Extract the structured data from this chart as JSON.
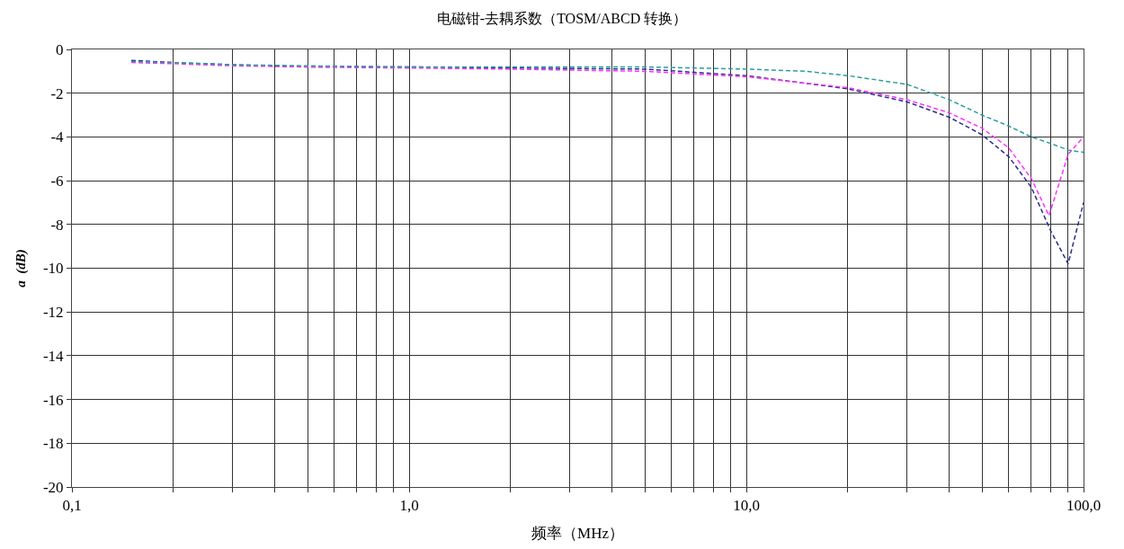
{
  "chart_data": {
    "type": "line",
    "title": "电磁钳-去耦系数（TOSM/ABCD 转换）",
    "xlabel": "频率（MHz）",
    "ylabel": "a  (dB)",
    "log": "x",
    "grid": true,
    "marker": "none",
    "line_style": "dashed",
    "xlim": [
      0.1,
      100
    ],
    "ylim": [
      -20,
      0
    ],
    "xticks": [
      {
        "value": 0.1,
        "label": "0,1"
      },
      {
        "value": 0.2,
        "label": null
      },
      {
        "value": 0.3,
        "label": null
      },
      {
        "value": 0.4,
        "label": null
      },
      {
        "value": 0.5,
        "label": null
      },
      {
        "value": 0.6,
        "label": null
      },
      {
        "value": 0.7,
        "label": null
      },
      {
        "value": 0.8,
        "label": null
      },
      {
        "value": 0.9,
        "label": null
      },
      {
        "value": 1,
        "label": "1,0"
      },
      {
        "value": 2,
        "label": null
      },
      {
        "value": 3,
        "label": null
      },
      {
        "value": 4,
        "label": null
      },
      {
        "value": 5,
        "label": null
      },
      {
        "value": 6,
        "label": null
      },
      {
        "value": 7,
        "label": null
      },
      {
        "value": 8,
        "label": null
      },
      {
        "value": 9,
        "label": null
      },
      {
        "value": 10,
        "label": "10,0"
      },
      {
        "value": 20,
        "label": null
      },
      {
        "value": 30,
        "label": null
      },
      {
        "value": 40,
        "label": null
      },
      {
        "value": 50,
        "label": null
      },
      {
        "value": 60,
        "label": null
      },
      {
        "value": 70,
        "label": null
      },
      {
        "value": 80,
        "label": null
      },
      {
        "value": 90,
        "label": null
      },
      {
        "value": 100,
        "label": "100,0"
      }
    ],
    "yticks": [
      0,
      -2,
      -4,
      -6,
      -8,
      -10,
      -12,
      -14,
      -16,
      -18,
      -20
    ],
    "series": [
      {
        "color": "#2b2b8c",
        "x": [
          0.15,
          0.2,
          0.3,
          0.5,
          1,
          2,
          5,
          10,
          20,
          30,
          40,
          50,
          60,
          70,
          80,
          90,
          100
        ],
        "values": [
          -0.5,
          -0.6,
          -0.7,
          -0.8,
          -0.8,
          -0.85,
          -0.9,
          -1.2,
          -1.8,
          -2.4,
          -3.1,
          -3.9,
          -4.9,
          -6.3,
          -8.3,
          -9.8,
          -7.0
        ]
      },
      {
        "color": "#ff33ff",
        "x": [
          0.15,
          0.2,
          0.3,
          0.5,
          1,
          2,
          5,
          10,
          20,
          30,
          40,
          50,
          60,
          70,
          79,
          90,
          100
        ],
        "values": [
          -0.6,
          -0.65,
          -0.75,
          -0.8,
          -0.85,
          -0.9,
          -1.0,
          -1.25,
          -1.75,
          -2.3,
          -2.9,
          -3.6,
          -4.5,
          -5.9,
          -7.6,
          -4.8,
          -4.0
        ]
      },
      {
        "color": "#2a9d9d",
        "x": [
          0.15,
          0.2,
          0.3,
          0.5,
          1,
          2,
          5,
          10,
          15,
          20,
          30,
          40,
          50,
          60,
          70,
          80,
          90,
          100
        ],
        "values": [
          -0.55,
          -0.6,
          -0.7,
          -0.75,
          -0.8,
          -0.8,
          -0.8,
          -0.9,
          -1.0,
          -1.2,
          -1.6,
          -2.3,
          -3.0,
          -3.5,
          -4.0,
          -4.3,
          -4.6,
          -4.7
        ]
      }
    ]
  }
}
